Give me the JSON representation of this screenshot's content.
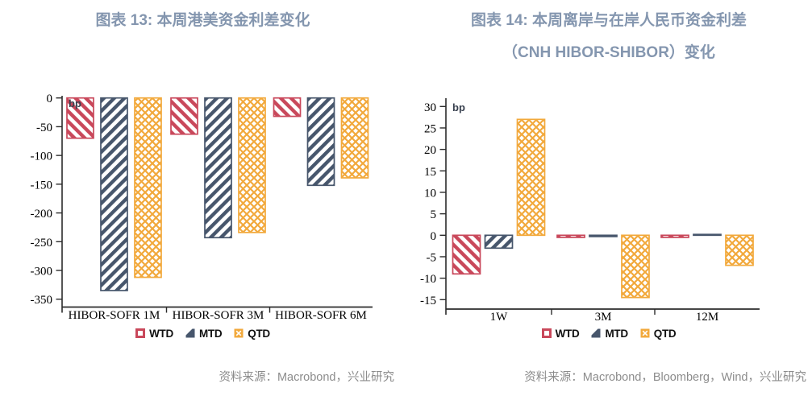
{
  "page": {
    "background": "#FFFFFF"
  },
  "styles": {
    "title_color": "#8496AF",
    "source_color": "#8C8C8C",
    "axis_color": "#2B2B2B",
    "unit_label_color": "#39414F",
    "series_colors": {
      "WTD": "#C9485B",
      "MTD": "#47566C",
      "QTD": "#F2A93C"
    }
  },
  "chart_data": [
    {
      "type": "bar",
      "title": "图表 13: 本周港美资金利差变化",
      "title_lines": [
        "图表 13: 本周港美资金利差变化"
      ],
      "unit": "bp",
      "categories": [
        "HIBOR-SOFR 1M",
        "HIBOR-SOFR 3M",
        "HIBOR-SOFR 6M"
      ],
      "series": [
        {
          "name": "WTD",
          "pattern": "diagonal-down",
          "color": "#C9485B",
          "values": [
            -70,
            -63,
            -32
          ]
        },
        {
          "name": "MTD",
          "pattern": "diagonal-up",
          "color": "#47566C",
          "values": [
            -335,
            -243,
            -152
          ]
        },
        {
          "name": "QTD",
          "pattern": "crosshatch",
          "color": "#F2A93C",
          "values": [
            -312,
            -234,
            -139
          ]
        }
      ],
      "ylim": [
        -350,
        0
      ],
      "yticks": [
        0,
        -50,
        -100,
        -150,
        -200,
        -250,
        -300,
        -350
      ],
      "grid": false,
      "legend_position": "bottom",
      "source": "资料来源：Macrobond，兴业研究"
    },
    {
      "type": "bar",
      "title": "图表 14: 本周离岸与在岸人民币资金利差（CNH HIBOR-SHIBOR）变化",
      "title_lines": [
        "图表 14: 本周离岸与在岸人民币资金利差",
        "（CNH HIBOR-SHIBOR）变化"
      ],
      "unit": "bp",
      "categories": [
        "1W",
        "3M",
        "12M"
      ],
      "series": [
        {
          "name": "WTD",
          "pattern": "diagonal-down",
          "color": "#C9485B",
          "values": [
            -9,
            -0.5,
            -0.5
          ]
        },
        {
          "name": "MTD",
          "pattern": "diagonal-up",
          "color": "#47566C",
          "values": [
            -3,
            -0.3,
            0.2
          ]
        },
        {
          "name": "QTD",
          "pattern": "crosshatch",
          "color": "#F2A93C",
          "values": [
            27,
            -14.5,
            -7
          ]
        }
      ],
      "ylim": [
        -15,
        30
      ],
      "yticks": [
        30,
        25,
        20,
        15,
        10,
        5,
        0,
        -5,
        -10,
        -15
      ],
      "grid": false,
      "legend_position": "bottom",
      "source": "资料来源：Macrobond，Bloomberg，Wind，兴业研究"
    }
  ]
}
